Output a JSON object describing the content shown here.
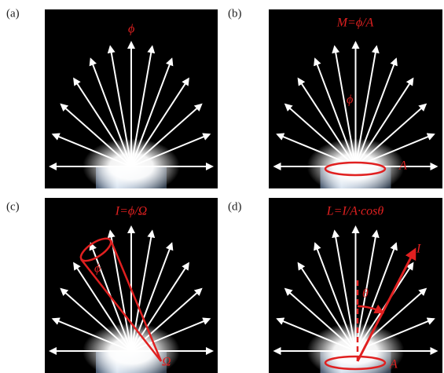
{
  "panels": [
    {
      "label": "(a)",
      "formula": "ϕ"
    },
    {
      "label": "(b)",
      "formula": "M=ϕ/A",
      "flux": "ϕ",
      "area": "A"
    },
    {
      "label": "(c)",
      "formula": "I=ϕ/Ω",
      "flux": "ϕ",
      "solid_angle": "Ω"
    },
    {
      "label": "(d)",
      "formula": "L=I/A·cosθ",
      "angle": "θ",
      "intensity": "I",
      "area": "A"
    }
  ]
}
